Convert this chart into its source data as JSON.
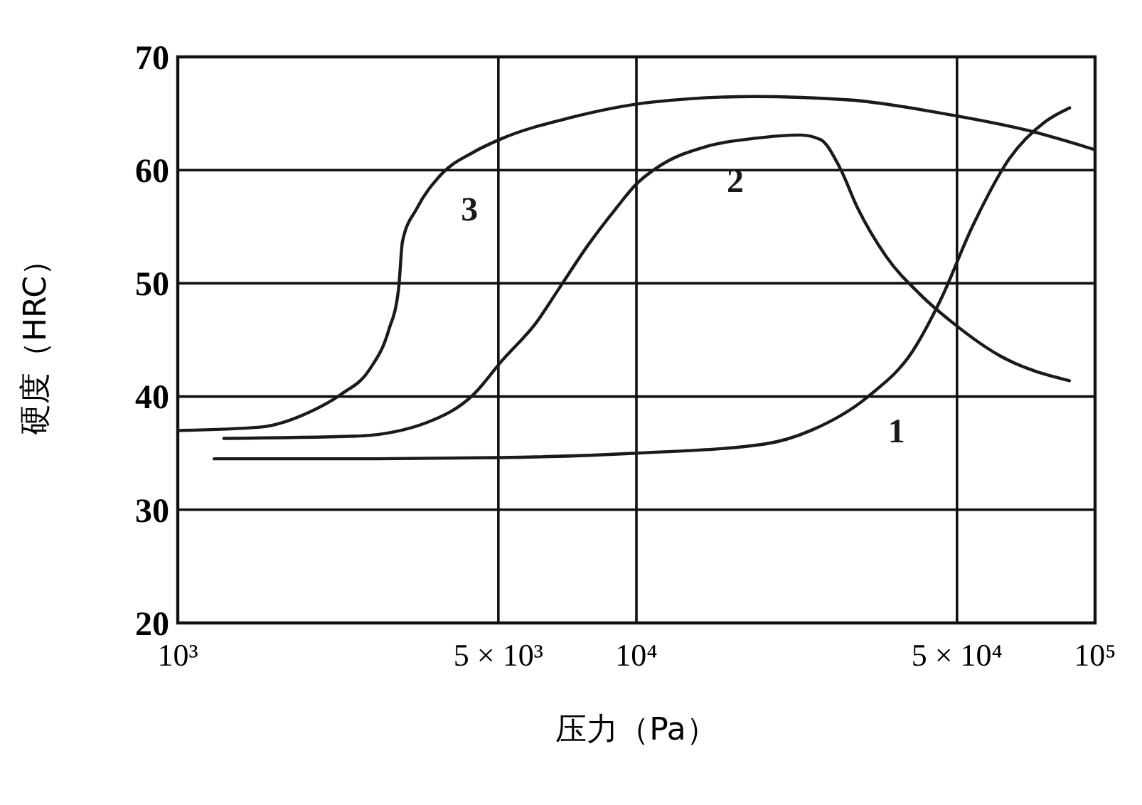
{
  "chart_data": {
    "type": "line",
    "xlabel": "压力（Pa）",
    "ylabel": "硬度（HRC）",
    "log": "x",
    "grid": true,
    "marker": "none",
    "line_style": "solid",
    "xlim": [
      1000,
      100000
    ],
    "xticks": [
      {
        "value": 1000,
        "label": "10³"
      },
      {
        "value": 5000,
        "label": "5 × 10³"
      },
      {
        "value": 10000,
        "label": "10⁴"
      },
      {
        "value": 50000,
        "label": "5 × 10⁴"
      },
      {
        "value": 100000,
        "label": "10⁵"
      }
    ],
    "ylim": [
      20,
      70
    ],
    "yticks": [
      20,
      30,
      40,
      50,
      60,
      70
    ],
    "series": [
      {
        "name": "1",
        "color": "#1a1a1a",
        "x": [
          1200,
          2400,
          5000,
          10000,
          19000,
          24000,
          32000,
          40000,
          46000,
          54000,
          65000,
          78000,
          88000
        ],
        "values": [
          34.5,
          34.5,
          34.6,
          35.0,
          35.8,
          37,
          40,
          44,
          48.5,
          55,
          61,
          64.3,
          65.5
        ]
      },
      {
        "name": "2",
        "color": "#1a1a1a",
        "x": [
          1260,
          2440,
          3490,
          4420,
          5100,
          6040,
          6770,
          7820,
          9020,
          9960,
          11170,
          14240,
          18030,
          22800,
          25200,
          27700,
          30400,
          35000,
          41600,
          49000,
          62000,
          87900
        ],
        "values": [
          36.3,
          36.5,
          37.7,
          40.2,
          43.2,
          46.5,
          49.5,
          53.3,
          56.6,
          58.7,
          60.3,
          62.1,
          62.8,
          63.1,
          62.7,
          60.3,
          56.6,
          52.4,
          49,
          46.5,
          43.6,
          41.4
        ]
      },
      {
        "name": "3",
        "color": "#1a1a1a",
        "x": [
          1000,
          1510,
          1930,
          2270,
          2620,
          2880,
          3030,
          3090,
          3320,
          3750,
          4420,
          5100,
          7130,
          10800,
          18000,
          29100,
          46600,
          71400,
          100000
        ],
        "values": [
          37.0,
          37.3,
          38.6,
          40.2,
          42.4,
          45.8,
          49.5,
          53.7,
          56.6,
          59.6,
          61.6,
          62.8,
          64.6,
          66.0,
          66.5,
          66.2,
          65,
          63.5,
          61.8
        ]
      }
    ]
  }
}
